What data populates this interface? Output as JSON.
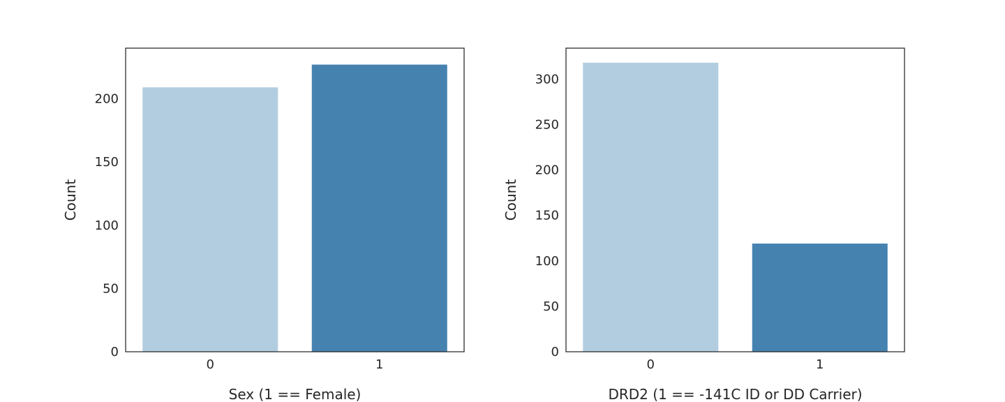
{
  "chart_data": [
    {
      "type": "bar",
      "title": "",
      "categories": [
        "0",
        "1"
      ],
      "values": [
        209,
        227
      ],
      "colors": [
        "#b3cde0",
        "#4682b0"
      ],
      "xlabel": "Sex (1 == Female)",
      "ylabel": "Count",
      "ylim": [
        0,
        240
      ],
      "yticks": [
        0,
        50,
        100,
        150,
        200
      ],
      "grid": false
    },
    {
      "type": "bar",
      "title": "",
      "categories": [
        "0",
        "1"
      ],
      "values": [
        318,
        119
      ],
      "colors": [
        "#b3cde0",
        "#4682b0"
      ],
      "xlabel": "DRD2 (1 == -141C ID or DD Carrier)",
      "ylabel": "Count",
      "ylim": [
        0,
        334
      ],
      "yticks": [
        0,
        50,
        100,
        150,
        200,
        250,
        300
      ],
      "grid": false
    }
  ],
  "style": {
    "axes_edge_color": "#262626",
    "background": "#ffffff"
  }
}
